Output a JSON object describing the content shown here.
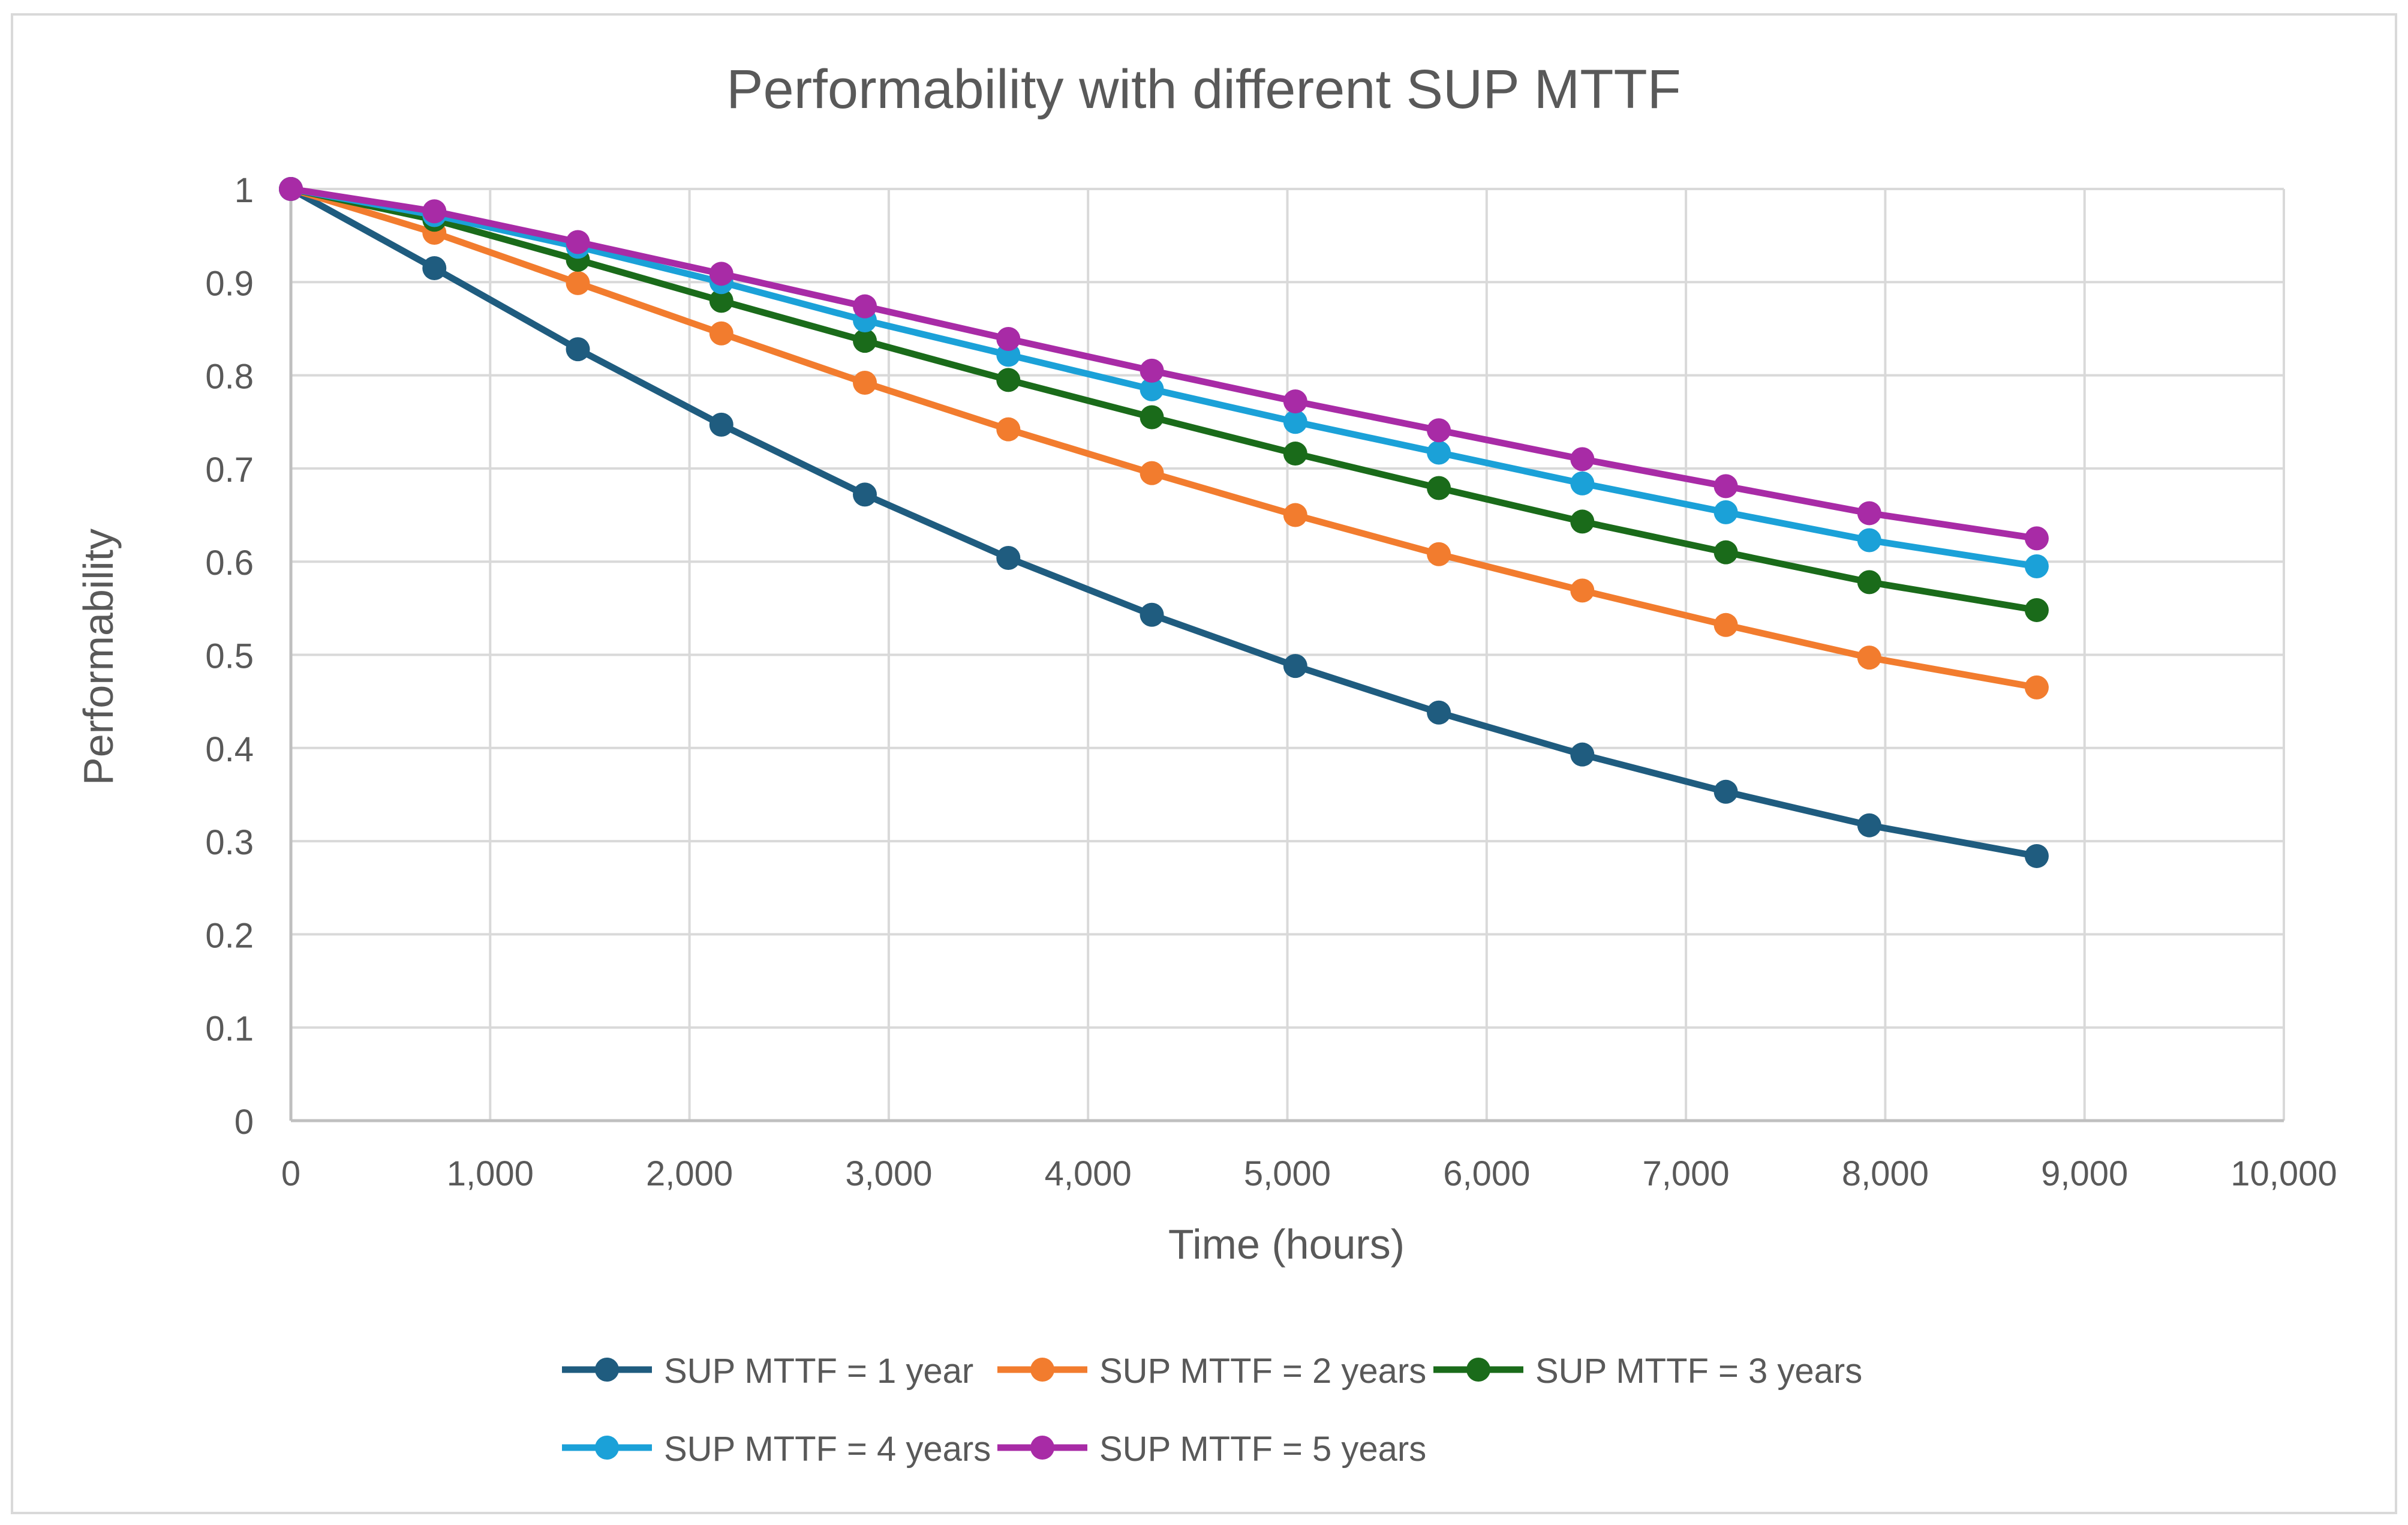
{
  "chart_data": {
    "type": "line",
    "title": "Performability with different SUP MTTF",
    "xlabel": "Time (hours)",
    "ylabel": "Performability",
    "xlim": [
      0,
      10000
    ],
    "ylim": [
      0,
      1
    ],
    "grid": true,
    "legend_position": "bottom",
    "x_ticks": [
      0,
      1000,
      2000,
      3000,
      4000,
      5000,
      6000,
      7000,
      8000,
      9000,
      10000
    ],
    "x_tick_labels": [
      "0",
      "1,000",
      "2,000",
      "3,000",
      "4,000",
      "5,000",
      "6,000",
      "7,000",
      "8,000",
      "9,000",
      "10,000"
    ],
    "y_ticks": [
      0,
      0.1,
      0.2,
      0.3,
      0.4,
      0.5,
      0.6,
      0.7,
      0.8,
      0.9,
      1
    ],
    "y_tick_labels": [
      "0",
      "0.1",
      "0.2",
      "0.3",
      "0.4",
      "0.5",
      "0.6",
      "0.7",
      "0.8",
      "0.9",
      "1"
    ],
    "x": [
      0,
      720,
      1440,
      2160,
      2880,
      3600,
      4320,
      5040,
      5760,
      6480,
      7200,
      7920,
      8760
    ],
    "series": [
      {
        "name": "SUP MTTF = 1 year",
        "color": "#1F5C7F",
        "values": [
          1.0,
          0.915,
          0.828,
          0.747,
          0.672,
          0.604,
          0.543,
          0.488,
          0.438,
          0.393,
          0.353,
          0.317,
          0.284
        ]
      },
      {
        "name": "SUP MTTF = 2 years",
        "color": "#F27C2E",
        "values": [
          1.0,
          0.953,
          0.899,
          0.845,
          0.792,
          0.742,
          0.695,
          0.65,
          0.608,
          0.569,
          0.532,
          0.497,
          0.465
        ]
      },
      {
        "name": "SUP MTTF = 3 years",
        "color": "#1A6B1A",
        "values": [
          1.0,
          0.967,
          0.924,
          0.88,
          0.837,
          0.795,
          0.755,
          0.716,
          0.679,
          0.643,
          0.61,
          0.578,
          0.548
        ]
      },
      {
        "name": "SUP MTTF = 4 years",
        "color": "#1BA1D8",
        "values": [
          1.0,
          0.972,
          0.938,
          0.9,
          0.859,
          0.822,
          0.785,
          0.75,
          0.717,
          0.684,
          0.653,
          0.623,
          0.595
        ]
      },
      {
        "name": "SUP MTTF = 5 years",
        "color": "#A82BA6",
        "values": [
          1.0,
          0.976,
          0.943,
          0.909,
          0.874,
          0.839,
          0.805,
          0.772,
          0.741,
          0.71,
          0.681,
          0.652,
          0.625
        ]
      }
    ]
  }
}
